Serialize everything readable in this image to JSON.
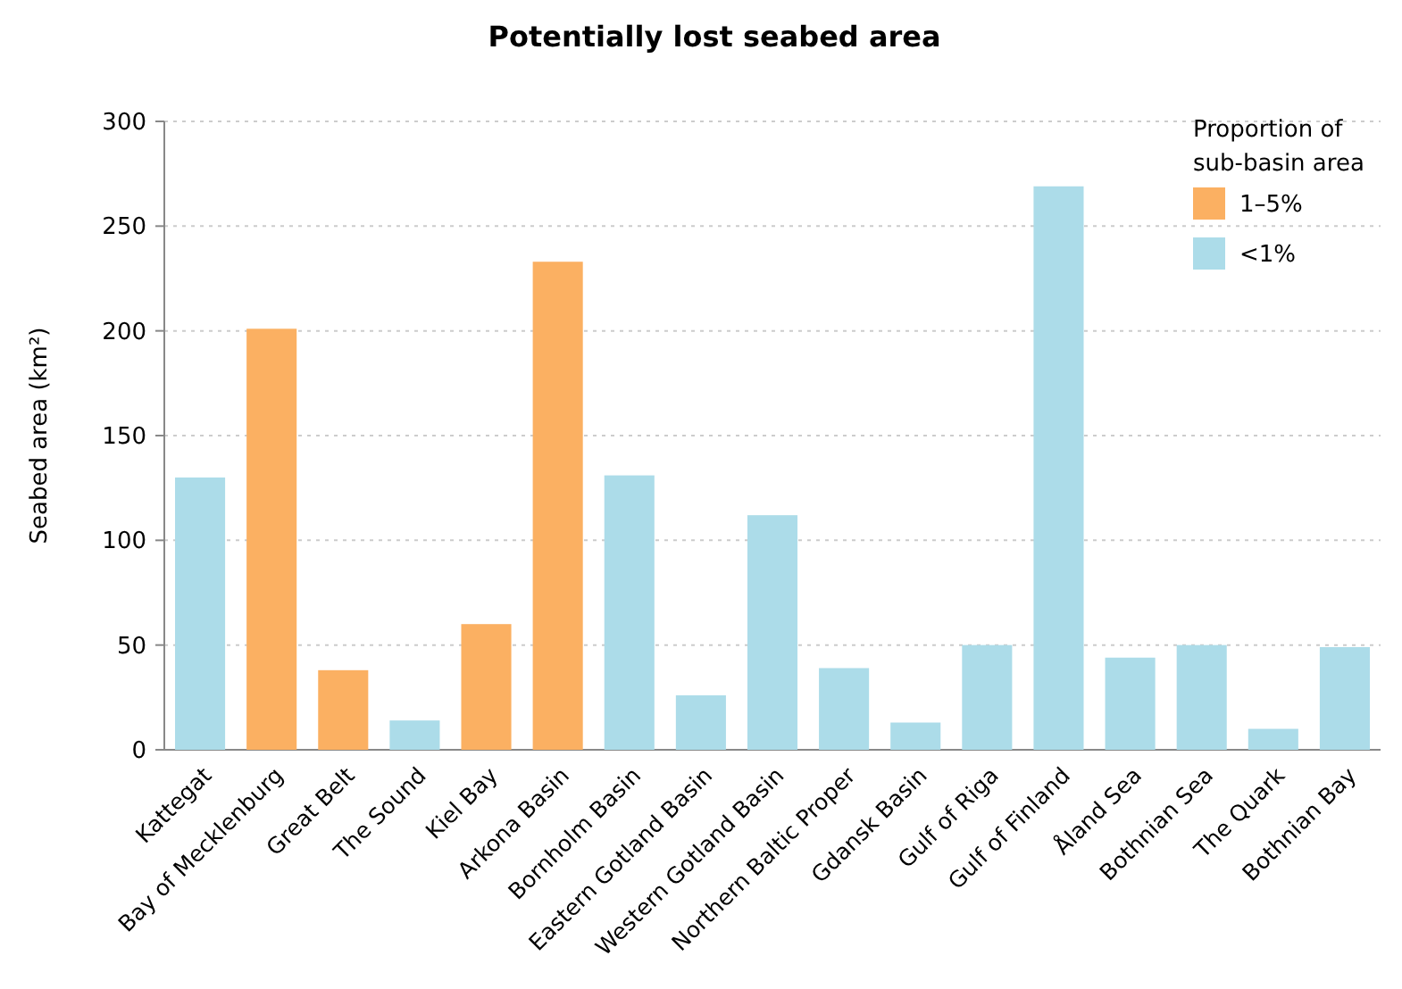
{
  "chart_data": {
    "type": "bar",
    "title": "Potentially lost seabed area",
    "ylabel": "Seabed area (km²)",
    "legend_title": "Proportion of sub-basin area",
    "categories": [
      "Kattegat",
      "Bay of Mecklenburg",
      "Great Belt",
      "The Sound",
      "Kiel Bay",
      "Arkona Basin",
      "Bornholm Basin",
      "Eastern Gotland Basin",
      "Western Gotland Basin",
      "Northern Baltic Proper",
      "Gdansk Basin",
      "Gulf of Riga",
      "Gulf of Finland",
      "Åland Sea",
      "Bothnian Sea",
      "The Quark",
      "Bothnian Bay"
    ],
    "series": [
      {
        "name": "1–5%",
        "color": "#fbb062",
        "values": [
          null,
          201,
          38,
          null,
          60,
          233,
          null,
          null,
          null,
          null,
          null,
          null,
          null,
          null,
          null,
          null,
          null
        ]
      },
      {
        "name": "<1%",
        "color": "#acdce9",
        "values": [
          130,
          null,
          null,
          14,
          null,
          null,
          131,
          26,
          112,
          39,
          13,
          50,
          269,
          44,
          50,
          10,
          49
        ]
      }
    ],
    "stacked": true,
    "ylim": [
      0,
      300
    ],
    "yticks": [
      0,
      50,
      100,
      150,
      200,
      250,
      300
    ],
    "grid": "y",
    "legend": "top right"
  }
}
